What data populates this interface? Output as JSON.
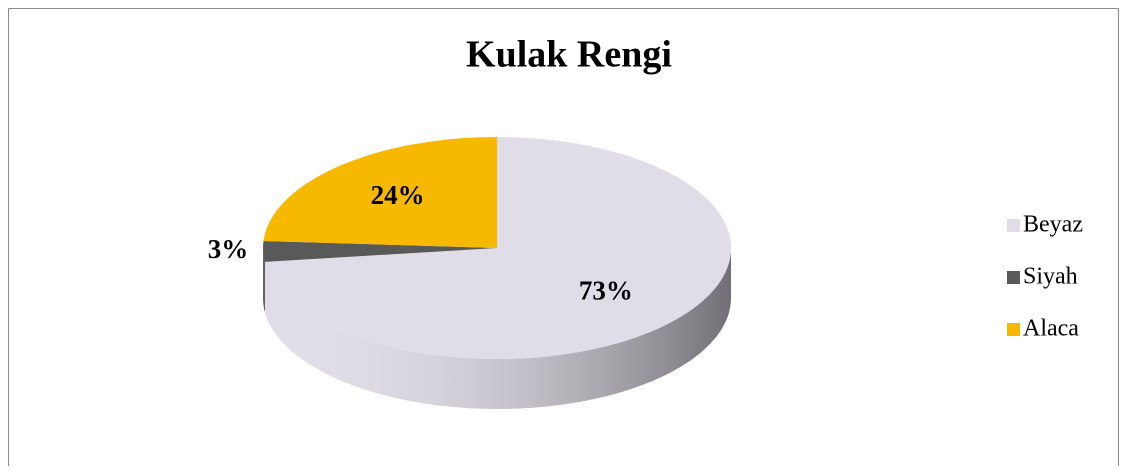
{
  "chart_data": {
    "type": "pie",
    "title": "Kulak Rengi",
    "categories": [
      "Beyaz",
      "Siyah",
      "Alaca"
    ],
    "values": [
      73,
      3,
      24
    ],
    "value_labels": [
      "73%",
      "3%",
      "24%"
    ],
    "colors": [
      "#e1dde8",
      "#595959",
      "#f6b900"
    ],
    "legend": "right"
  }
}
